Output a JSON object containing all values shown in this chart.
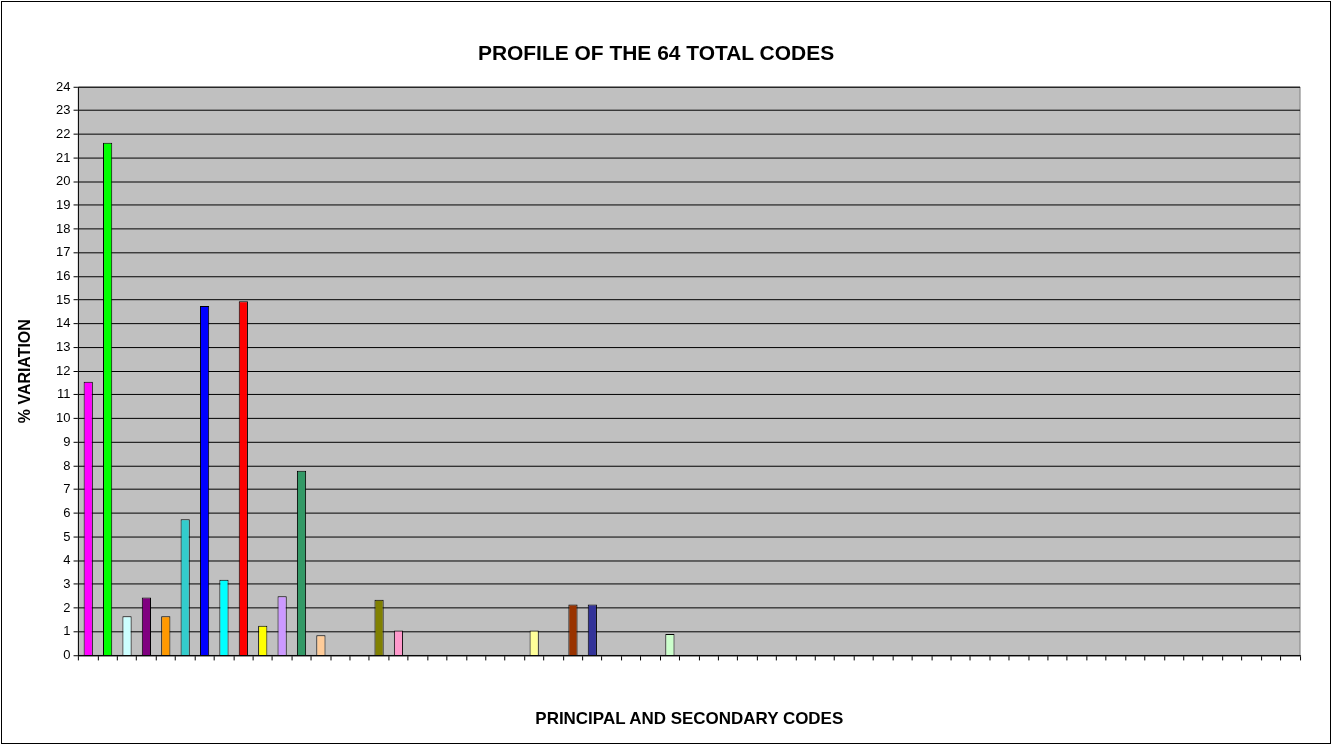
{
  "chart_data": {
    "type": "bar",
    "title": "PROFILE OF THE 64 TOTAL CODES",
    "xlabel": "PRINCIPAL AND SECONDARY CODES",
    "ylabel": "% VARIATION",
    "categories": [
      null,
      null,
      null,
      null,
      null,
      null,
      null,
      null,
      null,
      null,
      null,
      null,
      null,
      null,
      null,
      null,
      null,
      null,
      null,
      null,
      null,
      null,
      null,
      null,
      null,
      null,
      null,
      null,
      null,
      null,
      null,
      null,
      null,
      null,
      null,
      null,
      null,
      null,
      null,
      null,
      null,
      null,
      null,
      null,
      null,
      null,
      null,
      null,
      null,
      null,
      null,
      null,
      null,
      null,
      null,
      null,
      null,
      null,
      null,
      null,
      null,
      null,
      null
    ],
    "values": [
      11.55,
      21.65,
      1.65,
      2.45,
      1.65,
      5.75,
      14.75,
      3.2,
      14.95,
      1.25,
      2.5,
      7.8,
      0.85,
      null,
      null,
      2.35,
      1.05,
      null,
      null,
      null,
      null,
      null,
      null,
      1.05,
      null,
      2.15,
      2.15,
      null,
      null,
      null,
      0.9,
      null,
      null,
      null,
      null,
      null,
      null,
      null,
      null,
      null,
      null,
      null,
      null,
      null,
      null,
      null,
      null,
      null,
      null,
      null,
      null,
      null,
      null,
      null,
      null,
      null,
      null,
      null,
      null,
      null,
      null,
      null,
      null
    ],
    "colors": [
      "#ff00ff",
      "#00ff00",
      "#ccffff",
      "#800080",
      "#ff9900",
      "#33cccc",
      "#0000ff",
      "#00ffff",
      "#ff0000",
      "#ffff00",
      "#cc99ff",
      "#339966",
      "#ffcc99",
      null,
      null,
      "#808000",
      "#ff99cc",
      null,
      null,
      null,
      null,
      null,
      null,
      "#ffff99",
      null,
      "#993300",
      "#333399",
      null,
      null,
      null,
      "#ccffcc",
      null,
      null,
      null,
      null,
      null,
      null,
      null,
      null,
      null,
      null,
      null,
      null,
      null,
      null,
      null,
      null,
      null,
      null,
      null,
      null,
      null,
      null,
      null,
      null,
      null,
      null,
      null,
      null,
      null,
      null,
      null,
      null
    ],
    "ylim": [
      0,
      24
    ],
    "yticks": [
      0,
      1,
      2,
      3,
      4,
      5,
      6,
      7,
      8,
      9,
      10,
      11,
      12,
      13,
      14,
      15,
      16,
      17,
      18,
      19,
      20,
      21,
      22,
      23,
      24
    ],
    "grid": "y",
    "legend": false
  }
}
